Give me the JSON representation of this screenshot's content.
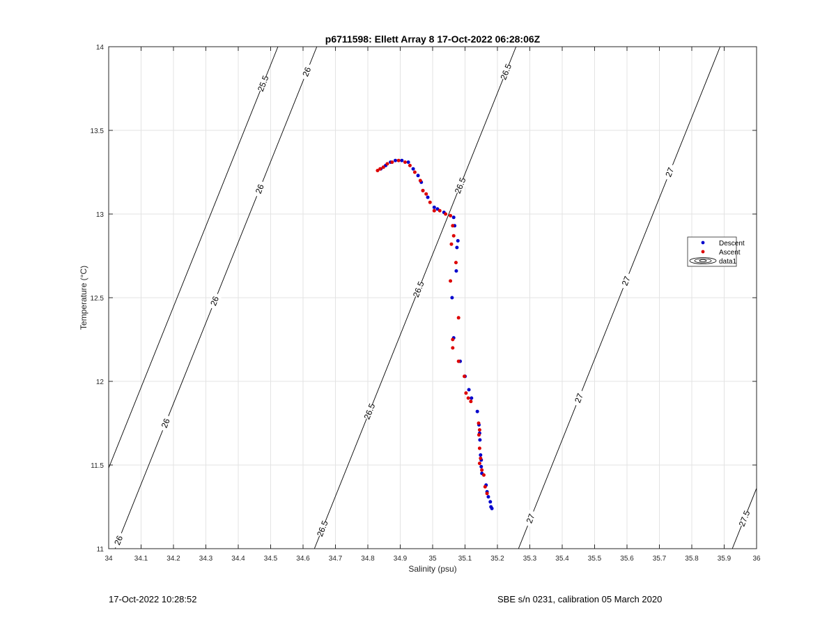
{
  "chart_data": {
    "type": "scatter",
    "title": "p6711598: Ellett Array 8 17-Oct-2022 06:28:06Z",
    "xlabel": "Salinity (psu)",
    "ylabel": "Temperature (°C)",
    "xlim": [
      34,
      36
    ],
    "ylim": [
      11,
      14
    ],
    "xticks": [
      "34",
      "34.1",
      "34.2",
      "34.3",
      "34.4",
      "34.5",
      "34.6",
      "34.7",
      "34.8",
      "34.9",
      "35",
      "35.1",
      "35.2",
      "35.3",
      "35.4",
      "35.5",
      "35.6",
      "35.7",
      "35.8",
      "35.9",
      "36"
    ],
    "yticks": [
      "11",
      "11.5",
      "12",
      "12.5",
      "13",
      "13.5",
      "14"
    ],
    "grid": true,
    "legend_position": "right",
    "series": [
      {
        "name": "Descent",
        "color": "#0000cc",
        "points": [
          [
            34.84,
            13.27
          ],
          [
            34.855,
            13.29
          ],
          [
            34.87,
            13.31
          ],
          [
            34.885,
            13.32
          ],
          [
            34.905,
            13.32
          ],
          [
            34.925,
            13.31
          ],
          [
            34.94,
            13.27
          ],
          [
            34.955,
            13.23
          ],
          [
            34.965,
            13.19
          ],
          [
            34.97,
            13.14
          ],
          [
            34.985,
            13.1
          ],
          [
            35.005,
            13.04
          ],
          [
            35.015,
            13.03
          ],
          [
            35.035,
            13.01
          ],
          [
            35.065,
            12.98
          ],
          [
            35.068,
            12.93
          ],
          [
            35.078,
            12.84
          ],
          [
            35.075,
            12.8
          ],
          [
            35.073,
            12.66
          ],
          [
            35.06,
            12.5
          ],
          [
            35.065,
            12.26
          ],
          [
            35.085,
            12.12
          ],
          [
            35.1,
            12.03
          ],
          [
            35.112,
            11.95
          ],
          [
            35.12,
            11.9
          ],
          [
            35.138,
            11.82
          ],
          [
            35.143,
            11.74
          ],
          [
            35.145,
            11.69
          ],
          [
            35.146,
            11.65
          ],
          [
            35.148,
            11.56
          ],
          [
            35.15,
            11.53
          ],
          [
            35.15,
            11.49
          ],
          [
            35.152,
            11.45
          ],
          [
            35.165,
            11.38
          ],
          [
            35.168,
            11.34
          ],
          [
            35.172,
            11.31
          ],
          [
            35.178,
            11.28
          ],
          [
            35.18,
            11.25
          ],
          [
            35.183,
            11.24
          ]
        ]
      },
      {
        "name": "Ascent",
        "color": "#dd0000",
        "points": [
          [
            34.83,
            13.26
          ],
          [
            34.838,
            13.27
          ],
          [
            34.848,
            13.28
          ],
          [
            34.86,
            13.3
          ],
          [
            34.875,
            13.31
          ],
          [
            34.895,
            13.32
          ],
          [
            34.915,
            13.31
          ],
          [
            34.93,
            13.29
          ],
          [
            34.945,
            13.25
          ],
          [
            34.962,
            13.2
          ],
          [
            34.97,
            13.14
          ],
          [
            34.98,
            13.12
          ],
          [
            34.992,
            13.07
          ],
          [
            35.005,
            13.02
          ],
          [
            35.022,
            13.02
          ],
          [
            35.04,
            13.0
          ],
          [
            35.055,
            12.99
          ],
          [
            35.062,
            12.93
          ],
          [
            35.065,
            12.87
          ],
          [
            35.058,
            12.82
          ],
          [
            35.072,
            12.71
          ],
          [
            35.055,
            12.6
          ],
          [
            35.08,
            12.38
          ],
          [
            35.062,
            12.25
          ],
          [
            35.062,
            12.2
          ],
          [
            35.08,
            12.12
          ],
          [
            35.098,
            12.03
          ],
          [
            35.103,
            11.93
          ],
          [
            35.11,
            11.9
          ],
          [
            35.118,
            11.88
          ],
          [
            35.142,
            11.75
          ],
          [
            35.145,
            11.71
          ],
          [
            35.143,
            11.68
          ],
          [
            35.145,
            11.6
          ],
          [
            35.148,
            11.54
          ],
          [
            35.145,
            11.51
          ],
          [
            35.152,
            11.47
          ],
          [
            35.158,
            11.44
          ],
          [
            35.162,
            11.37
          ],
          [
            35.168,
            11.33
          ]
        ]
      }
    ],
    "extra_legend_entry": "data1",
    "contour_labels": [
      "25.5",
      "26",
      "26.5",
      "27",
      "27.5"
    ]
  },
  "footer": {
    "left": "17-Oct-2022 10:28:52",
    "right": "SBE s/n 0231, calibration 05 March 2020"
  }
}
